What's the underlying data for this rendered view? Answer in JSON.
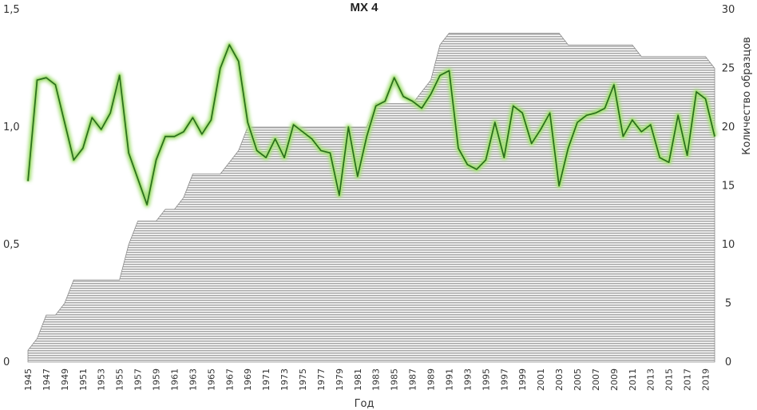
{
  "chart_data": {
    "type": "line",
    "title": "МХ 4",
    "xlabel": "Год",
    "ylabel": "",
    "y2label": "Количество образцов",
    "ylim": [
      0,
      1.5
    ],
    "y2lim": [
      0,
      30
    ],
    "y_ticks": [
      "0",
      "0,5",
      "1,0",
      "1,5"
    ],
    "y2_ticks": [
      "0",
      "5",
      "10",
      "15",
      "20",
      "25",
      "30"
    ],
    "x_tick_labels": [
      "1945",
      "1947",
      "1949",
      "1951",
      "1953",
      "1955",
      "1957",
      "1959",
      "1961",
      "1963",
      "1965",
      "1967",
      "1969",
      "1971",
      "1973",
      "1975",
      "1977",
      "1979",
      "1981",
      "1983",
      "1985",
      "1987",
      "1989",
      "1991",
      "1993",
      "1995",
      "1997",
      "1999",
      "2001",
      "2003",
      "2005",
      "2007",
      "2009",
      "2011",
      "2013",
      "2015",
      "2017",
      "2019"
    ],
    "grid": false,
    "legend": "none",
    "colors": {
      "line": "#2a6e1c",
      "glow": "#a6e07a",
      "area": "#b9b9b9",
      "area_stroke": "#8a8a8a"
    },
    "x": [
      1945,
      1946,
      1947,
      1948,
      1949,
      1950,
      1951,
      1952,
      1953,
      1954,
      1955,
      1956,
      1957,
      1958,
      1959,
      1960,
      1961,
      1962,
      1963,
      1964,
      1965,
      1966,
      1967,
      1968,
      1969,
      1970,
      1971,
      1972,
      1973,
      1974,
      1975,
      1976,
      1977,
      1978,
      1979,
      1980,
      1981,
      1982,
      1983,
      1984,
      1985,
      1986,
      1987,
      1988,
      1989,
      1990,
      1991,
      1992,
      1993,
      1994,
      1995,
      1996,
      1997,
      1998,
      1999,
      2000,
      2001,
      2002,
      2003,
      2004,
      2005,
      2006,
      2007,
      2008,
      2009,
      2010,
      2011,
      2012,
      2013,
      2014,
      2015,
      2016,
      2017,
      2018,
      2019,
      2020
    ],
    "series": [
      {
        "name": "МХ 4",
        "axis": "left",
        "type": "line",
        "values": [
          0.77,
          1.2,
          1.21,
          1.18,
          1.02,
          0.86,
          0.91,
          1.04,
          0.99,
          1.06,
          1.22,
          0.89,
          0.78,
          0.67,
          0.86,
          0.96,
          0.96,
          0.98,
          1.04,
          0.97,
          1.03,
          1.25,
          1.35,
          1.28,
          1.02,
          0.9,
          0.87,
          0.95,
          0.87,
          1.01,
          0.98,
          0.95,
          0.9,
          0.89,
          0.71,
          1.0,
          0.79,
          0.96,
          1.09,
          1.11,
          1.21,
          1.13,
          1.11,
          1.08,
          1.14,
          1.22,
          1.24,
          0.91,
          0.84,
          0.82,
          0.86,
          1.02,
          0.87,
          1.09,
          1.06,
          0.93,
          0.99,
          1.06,
          0.75,
          0.91,
          1.02,
          1.05,
          1.06,
          1.08,
          1.18,
          0.96,
          1.03,
          0.98,
          1.01,
          0.87,
          0.85,
          1.05,
          0.88,
          1.15,
          1.12,
          0.96
        ]
      },
      {
        "name": "Количество образцов",
        "axis": "right",
        "type": "area",
        "values": [
          1,
          2,
          4,
          4,
          5,
          7,
          7,
          7,
          7,
          7,
          7,
          10,
          12,
          12,
          12,
          13,
          13,
          14,
          16,
          16,
          16,
          16,
          17,
          18,
          20,
          20,
          20,
          20,
          20,
          20,
          20,
          20,
          20,
          20,
          20,
          20,
          20,
          20,
          22,
          22,
          22,
          22,
          22,
          23,
          24,
          27,
          28,
          28,
          28,
          28,
          28,
          28,
          28,
          28,
          28,
          28,
          28,
          28,
          28,
          27,
          27,
          27,
          27,
          27,
          27,
          27,
          27,
          26,
          26,
          26,
          26,
          26,
          26,
          26,
          26,
          25
        ]
      }
    ]
  }
}
